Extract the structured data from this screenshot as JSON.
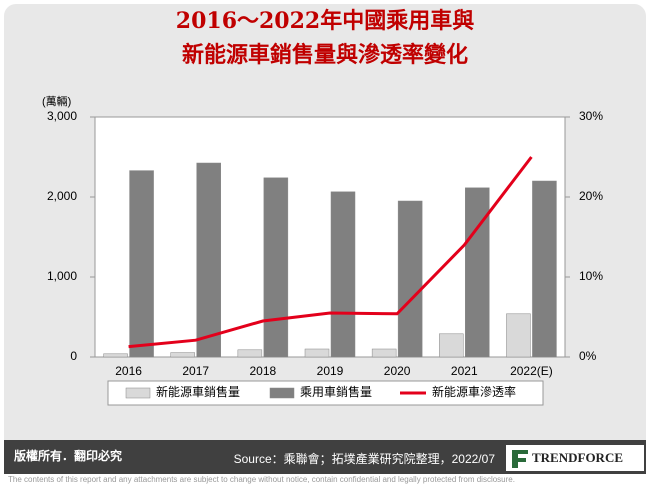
{
  "chart_data": {
    "type": "bar-line",
    "title": [
      "2016～2022年中國乘用車與",
      "新能源車銷售量與滲透率變化"
    ],
    "ylabel": "(萬輛)",
    "categories": [
      "2016",
      "2017",
      "2018",
      "2019",
      "2020",
      "2021",
      "2022(E)"
    ],
    "series": [
      {
        "name": "新能源車銷售量",
        "color": "#d9d9d9",
        "values": [
          40,
          55,
          90,
          100,
          100,
          290,
          540
        ]
      },
      {
        "name": "乘用車銷售量",
        "color": "#808080",
        "values": [
          2330,
          2425,
          2240,
          2065,
          1950,
          2115,
          2200
        ]
      },
      {
        "name": "新能源車滲透率",
        "color": "#e3001b",
        "axis": "y2",
        "values": [
          1.3,
          2.1,
          4.5,
          5.5,
          5.4,
          14,
          25
        ]
      }
    ],
    "ylim": [
      0,
      3000
    ],
    "yticks": [
      0,
      {
        "value": 1000,
        "label": "1,000"
      },
      {
        "value": 2000,
        "label": "2,000"
      },
      {
        "value": 3000,
        "label": "3,000"
      }
    ],
    "y2lim": [
      0,
      30
    ],
    "y2ticks": [
      {
        "value": 0,
        "label": "0%"
      },
      {
        "value": 10,
        "label": "10%"
      },
      {
        "value": 20,
        "label": "20%"
      },
      {
        "value": 30,
        "label": "30%"
      }
    ],
    "grid": false,
    "legend": "bottom"
  },
  "footer": {
    "rights": "版權所有．翻印必究",
    "source": "Source：乘聯會；拓墣產業研究院整理，2022/07",
    "logo": "TRENDFORCE",
    "disclaimer": "The contents of this report and any attachments are subject to change without notice, contain confidential and legally protected from disclosure."
  }
}
